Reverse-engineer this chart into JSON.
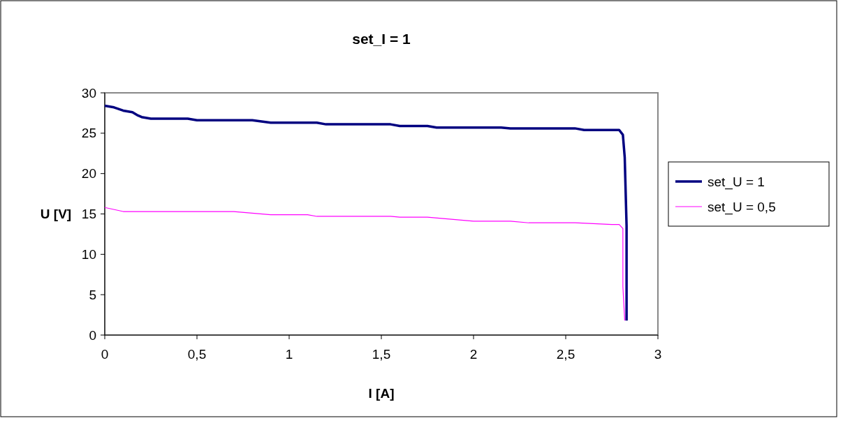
{
  "chart_data": {
    "type": "line",
    "title": "set_I = 1",
    "xlabel": "I [A]",
    "ylabel": "U [V]",
    "xlim": [
      0,
      3
    ],
    "xticks": [
      0,
      {
        "value": 0.5,
        "label": "0,5"
      },
      1,
      {
        "value": 1.5,
        "label": "1,5"
      },
      2,
      {
        "value": 2.5,
        "label": "2,5"
      },
      3
    ],
    "ylim": [
      0,
      30
    ],
    "yticks": [
      0,
      5,
      10,
      15,
      20,
      25,
      30
    ],
    "grid": false,
    "legend": "right",
    "marker": "none",
    "line_style": "solid",
    "series": [
      {
        "name": "set_U = 1",
        "color": "#000080",
        "x": [
          0,
          0.05,
          0.1,
          0.15,
          0.18,
          0.2,
          0.25,
          0.45,
          0.5,
          0.8,
          0.9,
          1.15,
          1.2,
          1.55,
          1.6,
          1.75,
          1.8,
          2.15,
          2.2,
          2.55,
          2.6,
          2.79,
          2.81,
          2.82,
          2.83,
          2.83
        ],
        "values": [
          28.4,
          28.2,
          27.8,
          27.6,
          27.2,
          27.0,
          26.8,
          26.8,
          26.6,
          26.6,
          26.3,
          26.3,
          26.1,
          26.1,
          25.9,
          25.9,
          25.7,
          25.7,
          25.6,
          25.6,
          25.4,
          25.4,
          24.8,
          22,
          13.5,
          1.8
        ]
      },
      {
        "name": "set_U = 0,5",
        "color": "#ff00ff",
        "x": [
          0,
          0.1,
          0.7,
          0.9,
          1.1,
          1.15,
          1.55,
          1.6,
          1.75,
          2.0,
          2.2,
          2.3,
          2.55,
          2.75,
          2.79,
          2.81,
          2.81,
          2.82
        ],
        "values": [
          15.8,
          15.3,
          15.3,
          14.9,
          14.9,
          14.7,
          14.7,
          14.6,
          14.6,
          14.1,
          14.1,
          13.9,
          13.9,
          13.7,
          13.7,
          13.2,
          6,
          1.8
        ]
      }
    ]
  }
}
